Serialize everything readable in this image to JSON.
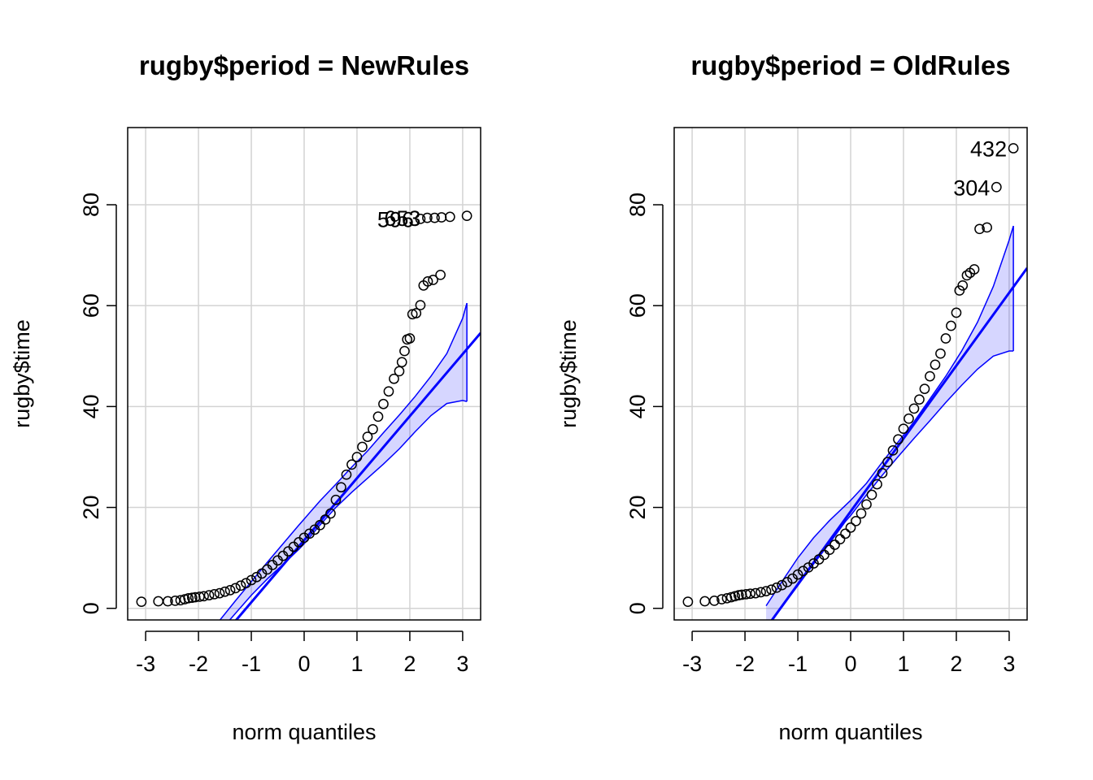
{
  "chart_data": [
    {
      "type": "scatter",
      "title": "rugby$period = NewRules",
      "xlabel": "norm quantiles",
      "ylabel": "rugby$time",
      "xlim": [
        -3.34,
        3.34
      ],
      "ylim": [
        -2.3,
        95.3
      ],
      "xticks": [
        -3,
        -2,
        -1,
        0,
        1,
        2,
        3
      ],
      "yticks": [
        0,
        20,
        40,
        60,
        80
      ],
      "grid": true,
      "reference_line": {
        "intercept": 13.5,
        "slope": 12.3
      },
      "envelope": {
        "x": [
          -1.6,
          -1.3,
          -1.0,
          -0.7,
          -0.4,
          -0.1,
          0.0,
          0.3,
          0.6,
          0.9,
          1.2,
          1.5,
          1.8,
          2.1,
          2.4,
          2.7,
          3.0,
          3.08
        ],
        "lower": [
          -4.6,
          -1.0,
          2.6,
          5.8,
          8.7,
          11.7,
          12.8,
          16.5,
          20.0,
          23.0,
          25.8,
          28.6,
          31.6,
          35.0,
          38.2,
          40.6,
          41.2,
          41.0
        ],
        "upper": [
          -2.4,
          1.5,
          5.3,
          9.1,
          12.8,
          16.5,
          17.7,
          21.3,
          24.6,
          28.0,
          31.2,
          34.8,
          38.3,
          42.0,
          46.0,
          50.5,
          57.5,
          60.5
        ]
      },
      "points": {
        "x": [
          -3.08,
          -2.76,
          -2.58,
          -2.44,
          -2.34,
          -2.26,
          -2.19,
          -2.12,
          -2.06,
          -1.98,
          -1.9,
          -1.8,
          -1.7,
          -1.6,
          -1.5,
          -1.4,
          -1.3,
          -1.2,
          -1.1,
          -1.0,
          -0.9,
          -0.8,
          -0.7,
          -0.6,
          -0.5,
          -0.4,
          -0.3,
          -0.2,
          -0.1,
          0.0,
          0.1,
          0.2,
          0.3,
          0.4,
          0.5,
          0.6,
          0.7,
          0.8,
          0.9,
          1.0,
          1.1,
          1.2,
          1.3,
          1.4,
          1.5,
          1.6,
          1.7,
          1.8,
          1.85,
          1.9,
          1.95,
          2.0,
          2.05,
          2.12,
          2.2,
          2.26,
          2.34,
          2.44,
          2.58,
          2.2,
          2.33,
          2.47,
          2.6,
          2.76,
          3.08
        ],
        "y": [
          1.3,
          1.4,
          1.4,
          1.5,
          1.6,
          1.8,
          2.0,
          2.1,
          2.2,
          2.3,
          2.4,
          2.6,
          2.8,
          3.0,
          3.3,
          3.6,
          4.0,
          4.5,
          5.0,
          5.6,
          6.2,
          6.9,
          7.7,
          8.6,
          9.5,
          10.4,
          11.3,
          12.2,
          13.1,
          14.0,
          14.8,
          15.6,
          16.5,
          17.6,
          18.8,
          21.5,
          24.0,
          26.5,
          28.5,
          30.0,
          32.0,
          34.0,
          35.5,
          38.0,
          40.5,
          43.0,
          45.5,
          47.0,
          48.8,
          51.0,
          53.3,
          53.5,
          58.3,
          58.5,
          60.1,
          64.0,
          64.8,
          65.1,
          66.1,
          77.2,
          77.4,
          77.4,
          77.5,
          77.6,
          77.8
        ]
      },
      "point_labels": [
        {
          "text": "596",
          "x": 2.2,
          "y": 77.2
        },
        {
          "text": "653",
          "x": 2.33,
          "y": 77.4
        }
      ]
    },
    {
      "type": "scatter",
      "title": "rugby$period = OldRules",
      "xlabel": "norm quantiles",
      "ylabel": "rugby$time",
      "xlim": [
        -3.34,
        3.34
      ],
      "ylim": [
        -2.3,
        95.3
      ],
      "xticks": [
        -3,
        -2,
        -1,
        0,
        1,
        2,
        3
      ],
      "yticks": [
        0,
        20,
        40,
        60,
        80
      ],
      "grid": true,
      "reference_line": {
        "intercept": 19.2,
        "slope": 14.45
      },
      "envelope": {
        "x": [
          -1.6,
          -1.3,
          -1.0,
          -0.7,
          -0.4,
          -0.1,
          0.0,
          0.3,
          0.6,
          0.9,
          1.2,
          1.5,
          1.8,
          2.1,
          2.4,
          2.7,
          3.0,
          3.08
        ],
        "lower": [
          -3.6,
          0.3,
          4.5,
          8.8,
          12.9,
          17.2,
          18.4,
          22.5,
          26.4,
          30.1,
          33.7,
          37.2,
          40.8,
          44.2,
          47.4,
          50.0,
          51.0,
          51.0
        ],
        "upper": [
          0.5,
          5.3,
          10.0,
          14.0,
          17.4,
          20.4,
          21.4,
          24.8,
          29.0,
          33.0,
          37.0,
          41.5,
          46.0,
          51.0,
          56.7,
          63.8,
          73.0,
          75.8
        ]
      },
      "points": {
        "x": [
          -3.08,
          -2.76,
          -2.58,
          -2.44,
          -2.34,
          -2.26,
          -2.19,
          -2.12,
          -2.06,
          -1.98,
          -1.9,
          -1.8,
          -1.7,
          -1.6,
          -1.5,
          -1.4,
          -1.3,
          -1.2,
          -1.1,
          -1.0,
          -0.9,
          -0.8,
          -0.7,
          -0.6,
          -0.5,
          -0.4,
          -0.3,
          -0.2,
          -0.1,
          0.0,
          0.1,
          0.2,
          0.3,
          0.4,
          0.5,
          0.6,
          0.7,
          0.8,
          0.9,
          1.0,
          1.1,
          1.2,
          1.3,
          1.4,
          1.5,
          1.6,
          1.7,
          1.8,
          1.9,
          2.0,
          2.06,
          2.12,
          2.2,
          2.26,
          2.34,
          2.44,
          2.58,
          2.76,
          3.08
        ],
        "y": [
          1.3,
          1.4,
          1.5,
          1.8,
          2.0,
          2.2,
          2.4,
          2.6,
          2.7,
          2.8,
          2.9,
          3.0,
          3.2,
          3.4,
          3.7,
          4.1,
          4.6,
          5.2,
          5.9,
          6.7,
          7.4,
          8.1,
          8.9,
          9.7,
          10.6,
          11.6,
          12.6,
          13.7,
          14.8,
          16.0,
          17.3,
          18.8,
          20.6,
          22.5,
          24.6,
          26.8,
          29.0,
          31.3,
          33.5,
          35.6,
          37.6,
          39.6,
          41.4,
          43.5,
          46.0,
          48.3,
          50.5,
          53.5,
          56.0,
          58.6,
          63.0,
          64.0,
          66.0,
          66.5,
          67.2,
          75.2,
          75.5,
          83.5,
          91.2
        ]
      },
      "point_labels": [
        {
          "text": "304",
          "x": 2.76,
          "y": 83.5
        },
        {
          "text": "432",
          "x": 3.08,
          "y": 91.2
        }
      ]
    }
  ]
}
